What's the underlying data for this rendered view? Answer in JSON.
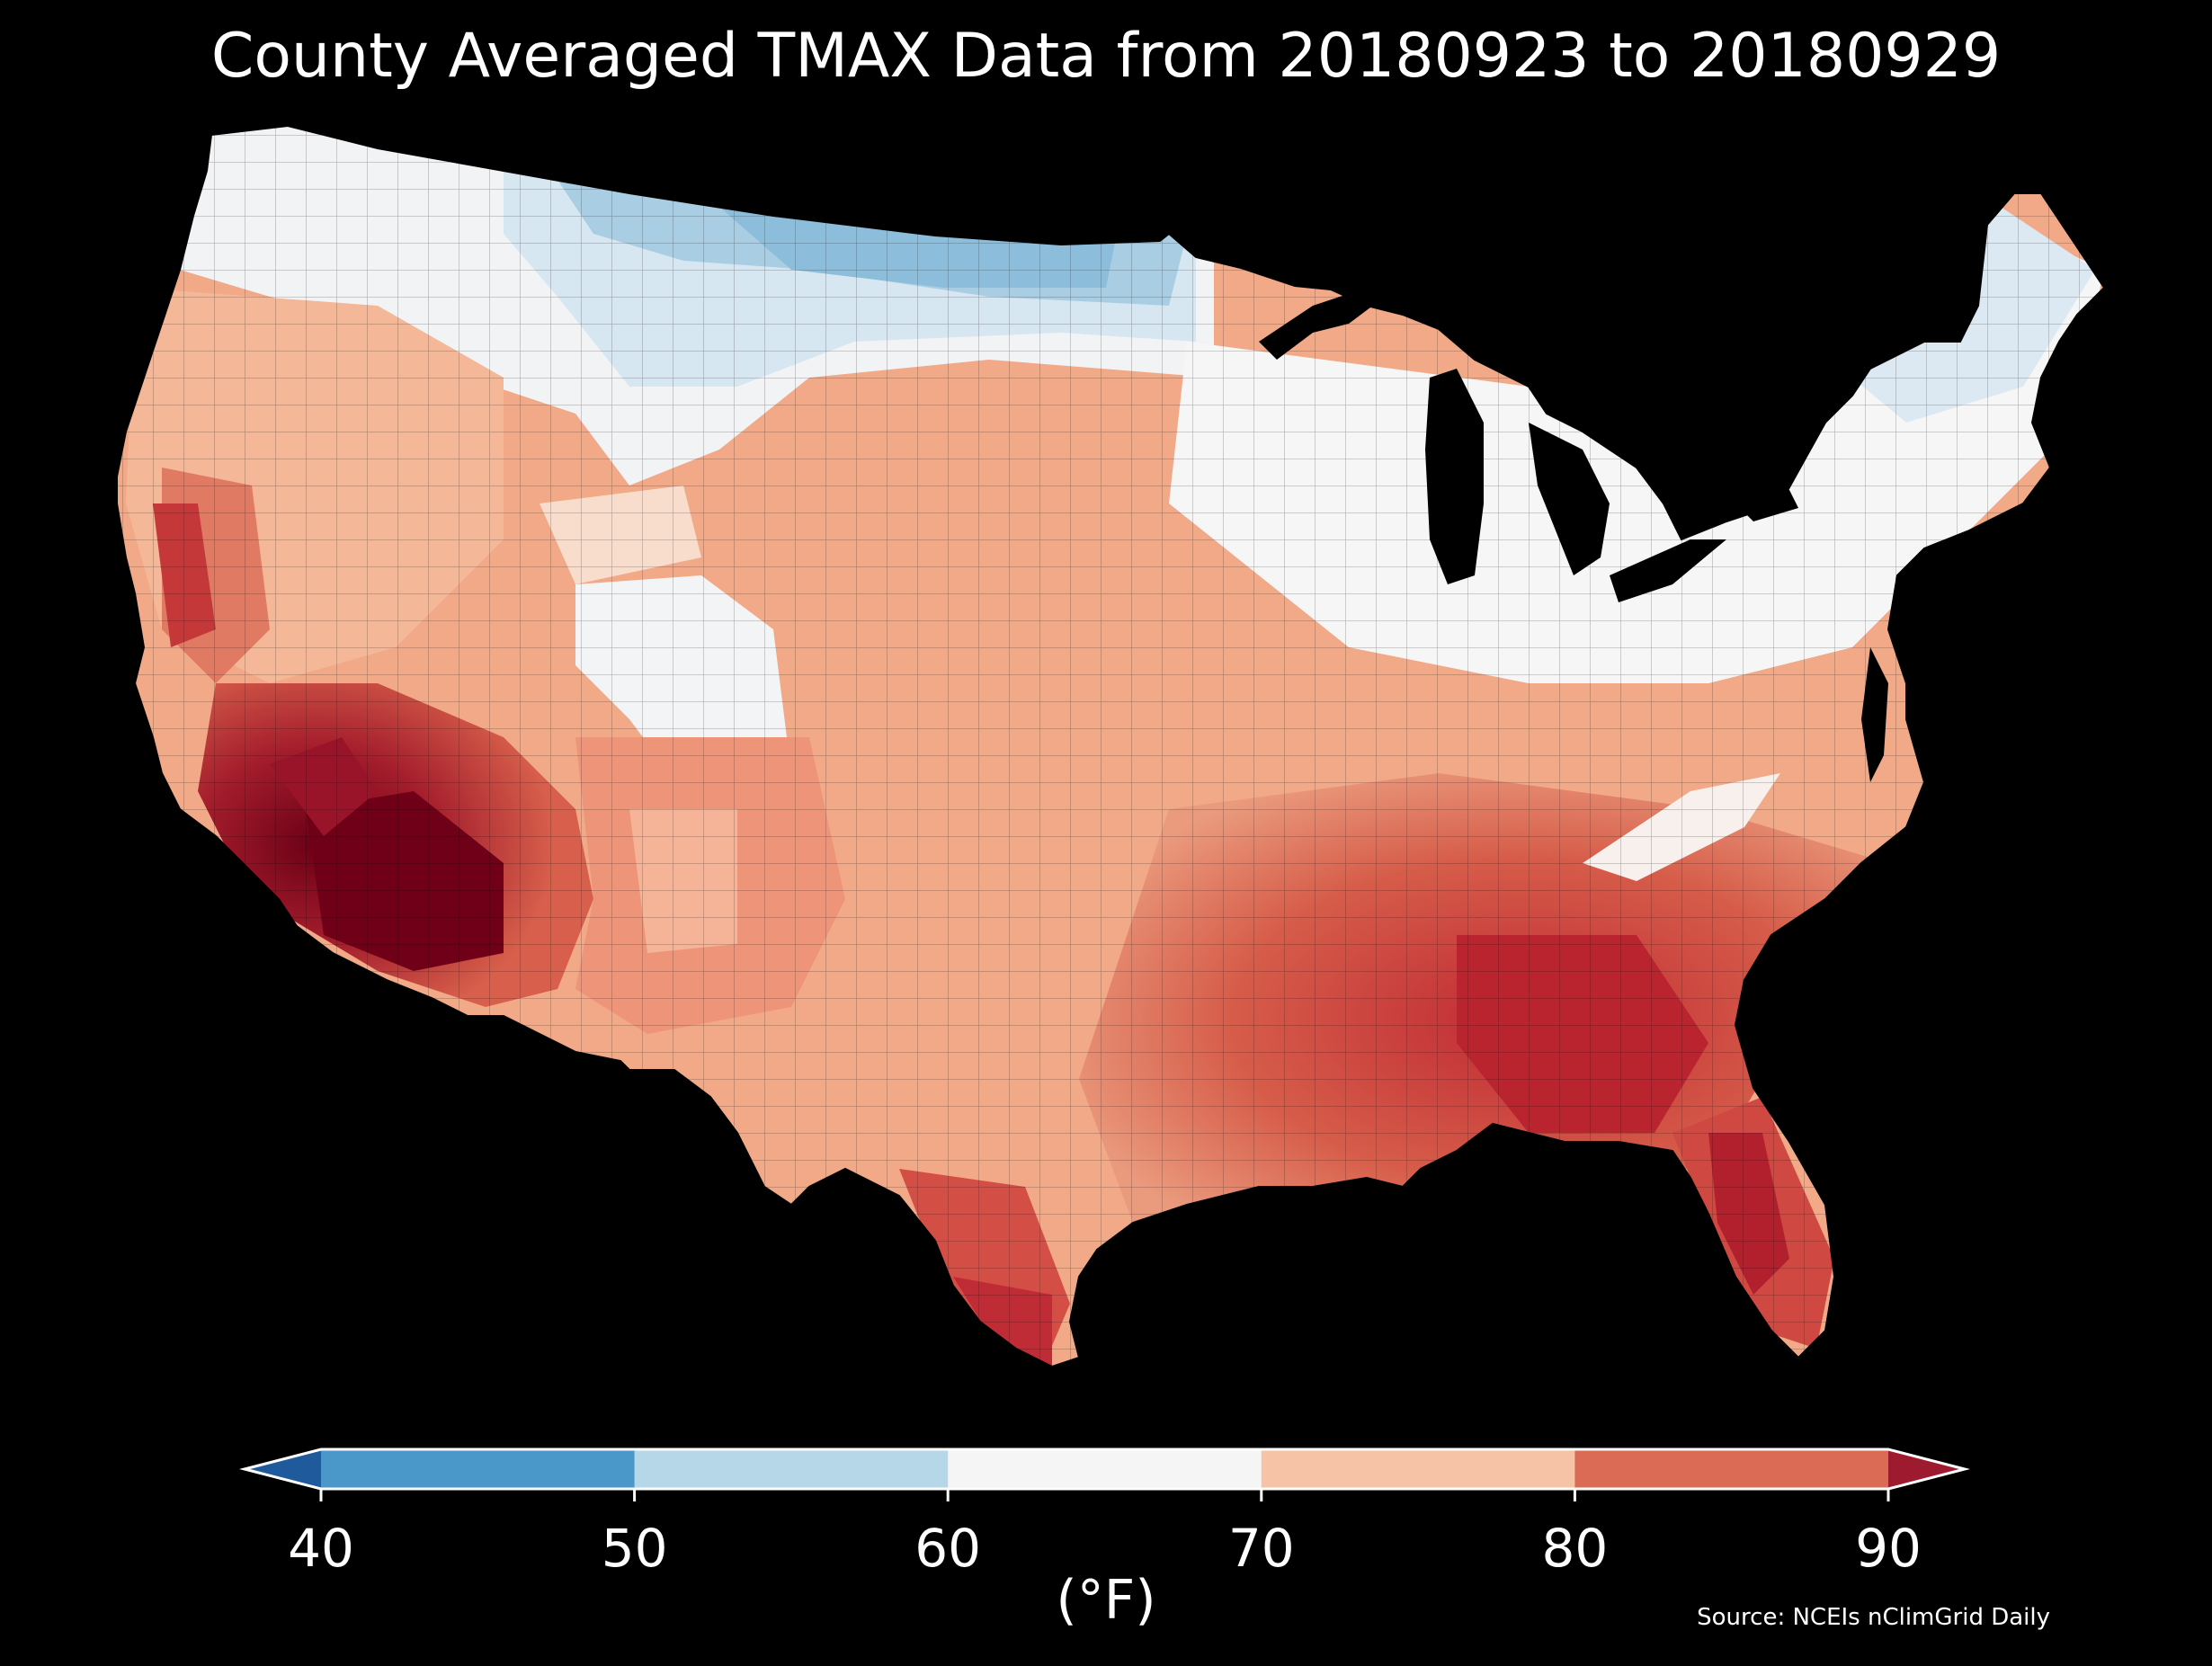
{
  "title": "County Averaged TMAX Data from 20180923 to 20180929",
  "colorbar": {
    "unit": "(°F)",
    "ticks": [
      "40",
      "50",
      "60",
      "70",
      "80",
      "90"
    ],
    "bins": [
      {
        "range": "<40",
        "color": "#1f5a9c"
      },
      {
        "range": "40-50",
        "color": "#4a98c9"
      },
      {
        "range": "50-60",
        "color": "#b6d7e8"
      },
      {
        "range": "60-70",
        "color": "#f5f5f5"
      },
      {
        "range": "70-80",
        "color": "#f7c3a6"
      },
      {
        "range": "80-90",
        "color": "#dc6b56"
      },
      {
        "range": ">90",
        "color": "#9e1a2e"
      }
    ]
  },
  "source": "Source: NCEIs nClimGrid Daily"
}
